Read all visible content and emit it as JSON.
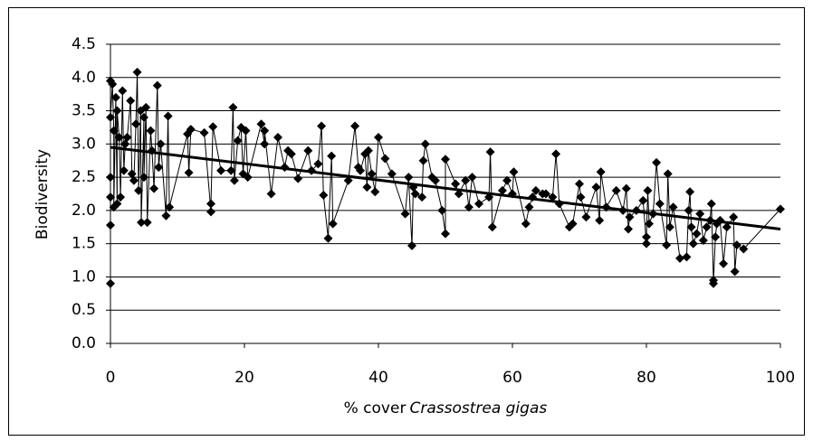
{
  "chart_data": {
    "type": "scatter",
    "y_label": "Biodiversity",
    "x_label": "% cover",
    "x_label_species": "Crassostrea gigas",
    "xlim": [
      0,
      100
    ],
    "xticks": [
      0,
      20,
      40,
      60,
      80,
      100
    ],
    "ylim": [
      0,
      4.5
    ],
    "yticks": [
      {
        "value": 0,
        "label": "0.0"
      },
      {
        "value": 0.5,
        "label": "0.5"
      },
      {
        "value": 1,
        "label": "1.0"
      },
      {
        "value": 1.5,
        "label": "1.5"
      },
      {
        "value": 2,
        "label": "2.0"
      },
      {
        "value": 2.5,
        "label": "2.5"
      },
      {
        "value": 3,
        "label": "3.0"
      },
      {
        "value": 3.5,
        "label": "3.5"
      },
      {
        "value": 4,
        "label": "4.0"
      },
      {
        "value": 4.5,
        "label": "4.5"
      }
    ],
    "grid": true,
    "color": "#000000",
    "x": [
      0,
      0,
      0,
      0,
      0,
      0,
      0.3,
      0.5,
      0.5,
      0.8,
      1,
      1,
      1.3,
      1.5,
      1.8,
      2,
      2.2,
      2.5,
      3,
      3.2,
      3.5,
      3.8,
      4,
      4.2,
      4.5,
      4.6,
      5,
      5,
      5.3,
      5.5,
      6,
      6.2,
      6.5,
      7,
      7.2,
      7.5,
      8.3,
      8.6,
      8.8,
      11.5,
      11.7,
      12,
      14,
      15,
      15,
      15.3,
      16.5,
      18,
      18.3,
      18.5,
      19,
      19.5,
      19.8,
      20.2,
      20.5,
      22.5,
      23,
      23,
      24,
      25,
      26,
      26.5,
      27,
      28,
      29.5,
      30,
      31,
      31.5,
      31.8,
      32.5,
      33,
      33.2,
      35.5,
      36.5,
      37,
      37.3,
      38,
      38.3,
      38.5,
      39,
      39.5,
      40,
      41,
      42,
      44,
      44.5,
      45,
      45.2,
      45.5,
      46.5,
      46.7,
      47,
      48,
      48.5,
      49.5,
      50,
      50,
      51.5,
      52,
      53,
      53.5,
      54,
      55,
      56.5,
      56.7,
      57,
      58.5,
      59.2,
      60,
      60.2,
      62,
      62.5,
      63,
      63.5,
      64.5,
      65,
      66,
      66.5,
      67,
      68.5,
      69,
      70,
      70.2,
      71,
      72.5,
      73,
      73.2,
      74,
      75.5,
      76.5,
      77,
      77.3,
      77.5,
      78.5,
      79.5,
      80,
      80,
      80.2,
      80.4,
      81,
      81.5,
      82,
      83,
      83.2,
      83.5,
      84,
      85,
      86,
      86.3,
      86.5,
      86.7,
      87,
      87.5,
      88,
      88.5,
      89,
      89.5,
      89.7,
      90,
      90,
      90.3,
      90.5,
      91,
      91.5,
      92,
      93,
      93.2,
      93.5,
      94.5,
      100
    ],
    "values": [
      0.9,
      1.78,
      2.2,
      2.5,
      3.95,
      3.4,
      3.9,
      3.2,
      2.05,
      3.7,
      2.1,
      3.5,
      3.1,
      2.2,
      3.8,
      2.6,
      3.0,
      3.1,
      3.65,
      2.55,
      2.45,
      3.3,
      4.08,
      2.3,
      3.5,
      1.82,
      3.4,
      2.5,
      3.55,
      1.82,
      3.2,
      2.9,
      2.33,
      3.88,
      2.65,
      3.0,
      1.92,
      3.42,
      2.05,
      3.15,
      2.57,
      3.22,
      3.17,
      1.98,
      2.1,
      3.26,
      2.6,
      2.6,
      3.55,
      2.45,
      3.05,
      3.25,
      2.55,
      3.2,
      2.5,
      3.3,
      3.0,
      3.2,
      2.25,
      3.1,
      2.65,
      2.9,
      2.85,
      2.48,
      2.9,
      2.6,
      2.7,
      3.27,
      2.23,
      1.58,
      2.82,
      1.8,
      2.45,
      3.27,
      2.65,
      2.6,
      2.85,
      2.35,
      2.9,
      2.55,
      2.28,
      3.1,
      2.78,
      2.55,
      1.95,
      2.5,
      1.47,
      2.35,
      2.25,
      2.2,
      2.75,
      3.0,
      2.5,
      2.45,
      2.0,
      1.65,
      2.77,
      2.4,
      2.25,
      2.45,
      2.05,
      2.5,
      2.1,
      2.2,
      2.88,
      1.75,
      2.3,
      2.45,
      2.25,
      2.58,
      1.8,
      2.05,
      2.2,
      2.3,
      2.25,
      2.25,
      2.2,
      2.85,
      2.1,
      1.75,
      1.8,
      2.4,
      2.2,
      1.9,
      2.35,
      1.85,
      2.58,
      2.05,
      2.3,
      2.0,
      2.33,
      1.72,
      1.9,
      2.0,
      2.15,
      1.5,
      1.6,
      2.3,
      1.8,
      1.95,
      2.72,
      2.1,
      1.48,
      2.55,
      1.75,
      2.05,
      1.28,
      1.3,
      2.0,
      2.28,
      1.75,
      1.5,
      1.65,
      1.95,
      1.55,
      1.75,
      1.85,
      2.1,
      0.95,
      0.9,
      1.6,
      1.8,
      1.85,
      1.2,
      1.75,
      1.9,
      1.08,
      1.48,
      1.42,
      2.02
    ],
    "trendline": {
      "x": [
        0,
        100
      ],
      "values": [
        2.95,
        1.72
      ]
    }
  }
}
